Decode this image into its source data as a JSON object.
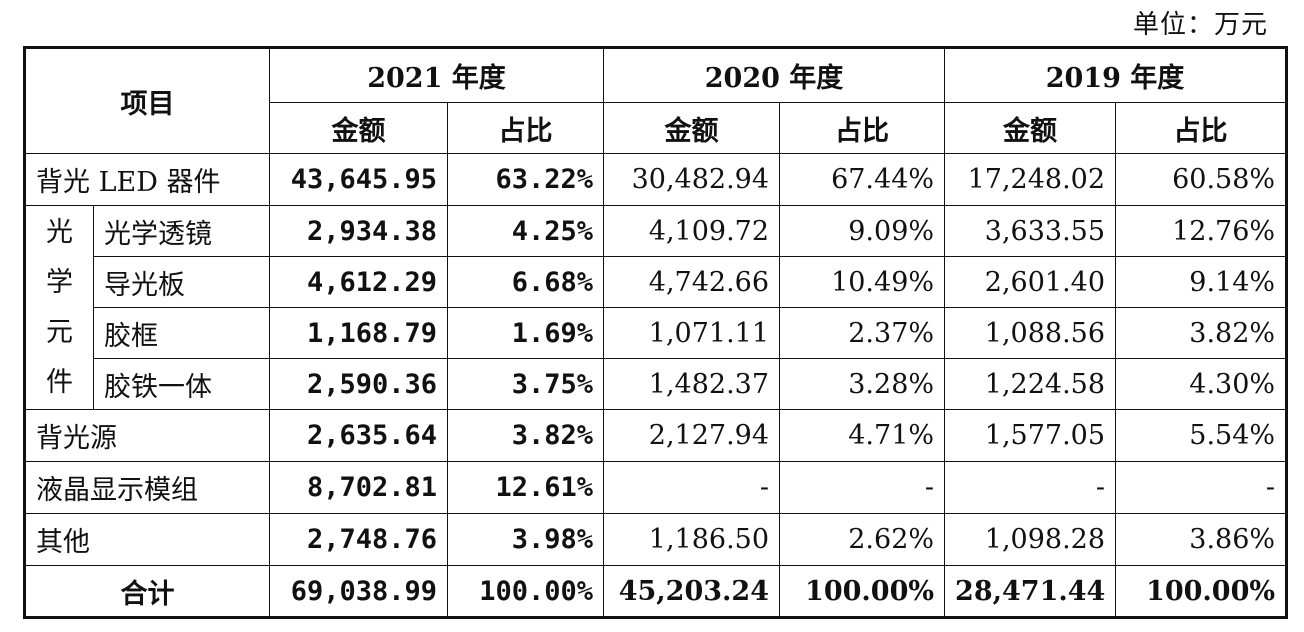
{
  "unit_label": "单位：万元",
  "header": {
    "item": "项目",
    "years": [
      "2021 年度",
      "2020 年度",
      "2019 年度"
    ],
    "amount": "金额",
    "ratio": "占比"
  },
  "rows": {
    "backlight_led": {
      "label": "背光 LED 器件",
      "v2021": "43,645.95",
      "p2021": "63.22%",
      "v2020": "30,482.94",
      "p2020": "67.44%",
      "v2019": "17,248.02",
      "p2019": "60.58%"
    },
    "optical_group_label": [
      "光",
      "学",
      "元",
      "件"
    ],
    "optical_lens": {
      "label": "光学透镜",
      "v2021": "2,934.38",
      "p2021": "4.25%",
      "v2020": "4,109.72",
      "p2020": "9.09%",
      "v2019": "3,633.55",
      "p2019": "12.76%"
    },
    "light_guide": {
      "label": "导光板",
      "v2021": "4,612.29",
      "p2021": "6.68%",
      "v2020": "4,742.66",
      "p2020": "10.49%",
      "v2019": "2,601.40",
      "p2019": "9.14%"
    },
    "plastic_frame": {
      "label": "胶框",
      "v2021": "1,168.79",
      "p2021": "1.69%",
      "v2020": "1,071.11",
      "p2020": "2.37%",
      "v2019": "1,088.56",
      "p2019": "3.82%"
    },
    "frame_iron": {
      "label": "胶铁一体",
      "v2021": "2,590.36",
      "p2021": "3.75%",
      "v2020": "1,482.37",
      "p2020": "3.28%",
      "v2019": "1,224.58",
      "p2019": "4.30%"
    },
    "backlight_source": {
      "label": "背光源",
      "v2021": "2,635.64",
      "p2021": "3.82%",
      "v2020": "2,127.94",
      "p2020": "4.71%",
      "v2019": "1,577.05",
      "p2019": "5.54%"
    },
    "lcd_module": {
      "label": "液晶显示模组",
      "v2021": "8,702.81",
      "p2021": "12.61%",
      "v2020": "-",
      "p2020": "-",
      "v2019": "-",
      "p2019": "-"
    },
    "other": {
      "label": "其他",
      "v2021": "2,748.76",
      "p2021": "3.98%",
      "v2020": "1,186.50",
      "p2020": "2.62%",
      "v2019": "1,098.28",
      "p2019": "3.86%"
    },
    "total": {
      "label": "合计",
      "v2021": "69,038.99",
      "p2021": "100.00%",
      "v2020": "45,203.24",
      "p2020": "100.00%",
      "v2019": "28,471.44",
      "p2019": "100.00%"
    }
  }
}
